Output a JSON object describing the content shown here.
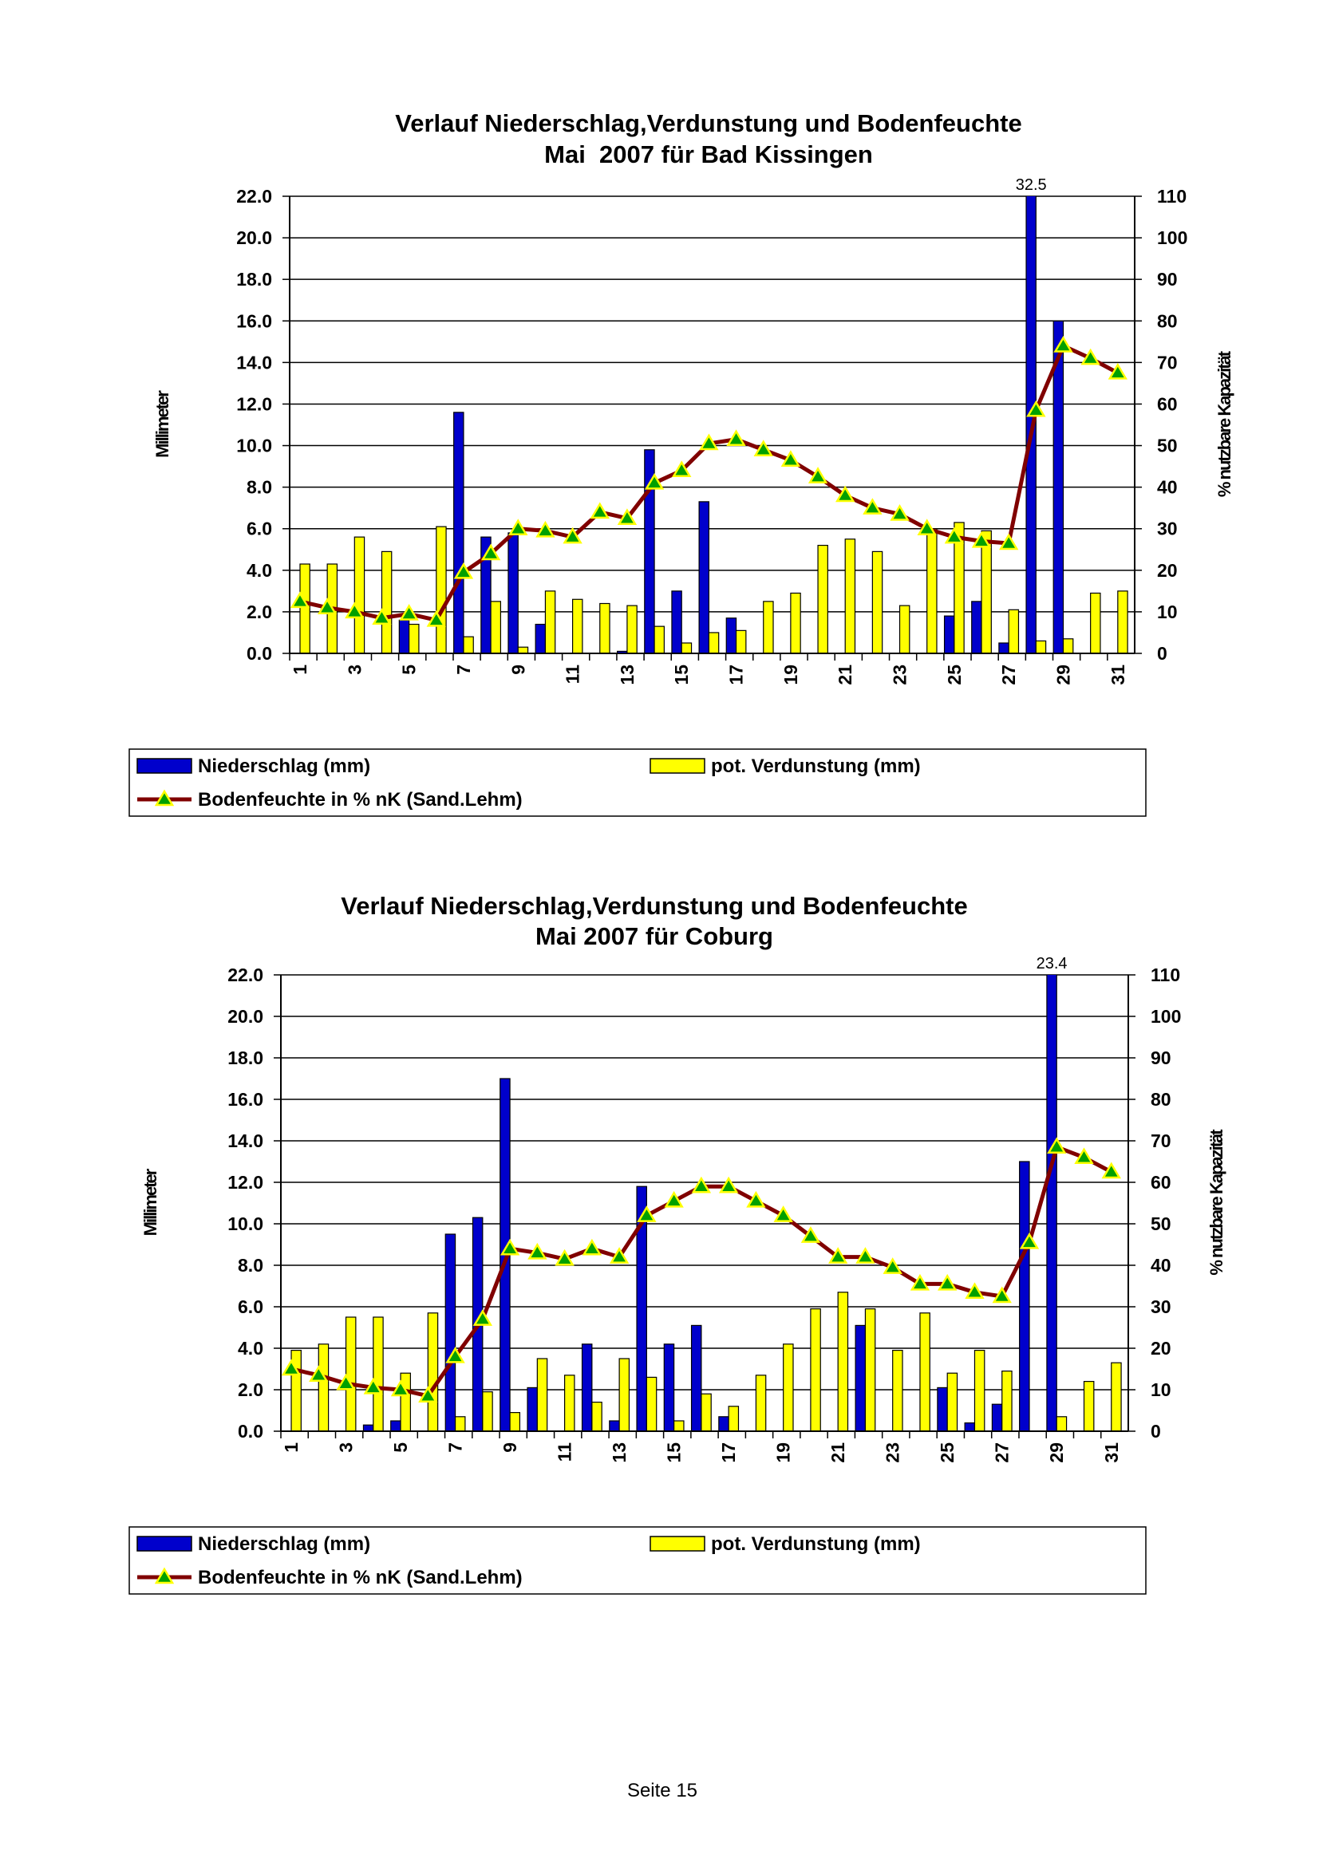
{
  "chart_data": [
    {
      "type": "bar",
      "title": "Verlauf Niederschlag,Verdunstung und Bodenfeuchte",
      "subtitle": "Mai  2007 für Bad Kissingen",
      "y_label": "Millimeter",
      "y2_label": "% nutzbare Kapazität",
      "categories": [
        "1",
        null,
        "3",
        null,
        "5",
        null,
        "7",
        null,
        "9",
        null,
        "11",
        null,
        "13",
        null,
        "15",
        null,
        "17",
        null,
        "19",
        null,
        "21",
        null,
        "23",
        null,
        "25",
        null,
        "27",
        null,
        "29",
        null,
        "31"
      ],
      "ylim": [
        0,
        22
      ],
      "yticks": [
        {
          "value": 0,
          "label": "0.0"
        },
        {
          "value": 2,
          "label": "2.0"
        },
        {
          "value": 4,
          "label": "4.0"
        },
        {
          "value": 6,
          "label": "6.0"
        },
        {
          "value": 8,
          "label": "8.0"
        },
        {
          "value": 10,
          "label": "10.0"
        },
        {
          "value": 12,
          "label": "12.0"
        },
        {
          "value": 14,
          "label": "14.0"
        },
        {
          "value": 16,
          "label": "16.0"
        },
        {
          "value": 18,
          "label": "18.0"
        },
        {
          "value": 20,
          "label": "20.0"
        },
        {
          "value": 22,
          "label": "22.0"
        }
      ],
      "y2lim": [
        0,
        110
      ],
      "y2ticks": [
        0,
        10,
        20,
        30,
        40,
        50,
        60,
        70,
        80,
        90,
        100,
        110
      ],
      "grid": true,
      "legend": "bottom",
      "series": [
        {
          "name": "Niederschlag (mm)",
          "color": "#0000cc",
          "values": [
            0,
            0,
            0,
            0,
            1.6,
            0,
            11.6,
            5.6,
            5.8,
            1.4,
            0,
            0,
            0.1,
            9.8,
            3.0,
            7.3,
            1.7,
            0,
            0,
            0,
            0,
            0,
            0,
            0,
            1.8,
            2.5,
            0.5,
            32.5,
            16.0,
            0,
            0
          ]
        },
        {
          "name": "pot. Verdunstung (mm)",
          "color": "#ffff00",
          "values": [
            4.3,
            4.3,
            5.6,
            4.9,
            1.4,
            6.1,
            0.8,
            2.5,
            0.3,
            3.0,
            2.6,
            2.4,
            2.3,
            1.3,
            0.5,
            1.0,
            1.1,
            2.5,
            2.9,
            5.2,
            5.5,
            4.9,
            2.3,
            6.0,
            6.3,
            5.9,
            2.1,
            0.6,
            0.7,
            2.9,
            3.0
          ]
        },
        {
          "name": "Bodenfeuchte in % nK (Sand.Lehm)",
          "type": "line",
          "axis": "y2",
          "color": "#800000",
          "values": [
            12.5,
            11,
            10,
            8.5,
            9.5,
            8,
            19.5,
            24,
            30,
            29.5,
            28,
            34,
            32.5,
            41,
            44,
            50.5,
            51.5,
            49,
            46.5,
            42.5,
            38,
            35,
            33.5,
            30,
            28,
            27,
            26.5,
            58.5,
            74,
            71,
            67.5
          ]
        }
      ]
    },
    {
      "type": "bar",
      "title": "Verlauf Niederschlag,Verdunstung und Bodenfeuchte",
      "subtitle": "Mai 2007 für Coburg",
      "y_label": "Millimeter",
      "y2_label": "% nutzbare Kapazität",
      "categories": [
        "1",
        null,
        "3",
        null,
        "5",
        null,
        "7",
        null,
        "9",
        null,
        "11",
        null,
        "13",
        null,
        "15",
        null,
        "17",
        null,
        "19",
        null,
        "21",
        null,
        "23",
        null,
        "25",
        null,
        "27",
        null,
        "29",
        null,
        "31"
      ],
      "ylim": [
        0,
        22
      ],
      "yticks": [
        {
          "value": 0,
          "label": "0.0"
        },
        {
          "value": 2,
          "label": "2.0"
        },
        {
          "value": 4,
          "label": "4.0"
        },
        {
          "value": 6,
          "label": "6.0"
        },
        {
          "value": 8,
          "label": "8.0"
        },
        {
          "value": 10,
          "label": "10.0"
        },
        {
          "value": 12,
          "label": "12.0"
        },
        {
          "value": 14,
          "label": "14.0"
        },
        {
          "value": 16,
          "label": "16.0"
        },
        {
          "value": 18,
          "label": "18.0"
        },
        {
          "value": 20,
          "label": "20.0"
        },
        {
          "value": 22,
          "label": "22.0"
        }
      ],
      "y2lim": [
        0,
        110
      ],
      "y2ticks": [
        0,
        10,
        20,
        30,
        40,
        50,
        60,
        70,
        80,
        90,
        100,
        110
      ],
      "grid": true,
      "legend": "bottom",
      "series": [
        {
          "name": "Niederschlag (mm)",
          "color": "#0000cc",
          "values": [
            0,
            0,
            0,
            0.3,
            0.5,
            0,
            9.5,
            10.3,
            17.0,
            2.1,
            0,
            4.2,
            0.5,
            11.8,
            4.2,
            5.1,
            0.7,
            0,
            0,
            0,
            0,
            5.1,
            0,
            0,
            2.1,
            0.4,
            1.3,
            13.0,
            23.4,
            0,
            0
          ]
        },
        {
          "name": "pot. Verdunstung (mm)",
          "color": "#ffff00",
          "values": [
            3.9,
            4.2,
            5.5,
            5.5,
            2.8,
            5.7,
            0.7,
            1.9,
            0.9,
            3.5,
            2.7,
            1.4,
            3.5,
            2.6,
            0.5,
            1.8,
            1.2,
            2.7,
            4.2,
            5.9,
            6.7,
            5.9,
            3.9,
            5.7,
            2.8,
            3.9,
            2.9,
            0,
            0.7,
            2.4,
            3.3
          ]
        },
        {
          "name": "Bodenfeuchte in % nK (Sand.Lehm)",
          "type": "line",
          "axis": "y2",
          "color": "#800000",
          "values": [
            15,
            13.5,
            11.5,
            10.5,
            10,
            8.5,
            18,
            27,
            44,
            43,
            41.5,
            44,
            42,
            52,
            55.5,
            59,
            59,
            55.5,
            52,
            47,
            42,
            42,
            39.5,
            35.5,
            35.5,
            33.5,
            32.5,
            45.5,
            68.5,
            66,
            62.5
          ]
        }
      ]
    }
  ],
  "footer": "Seite 15"
}
